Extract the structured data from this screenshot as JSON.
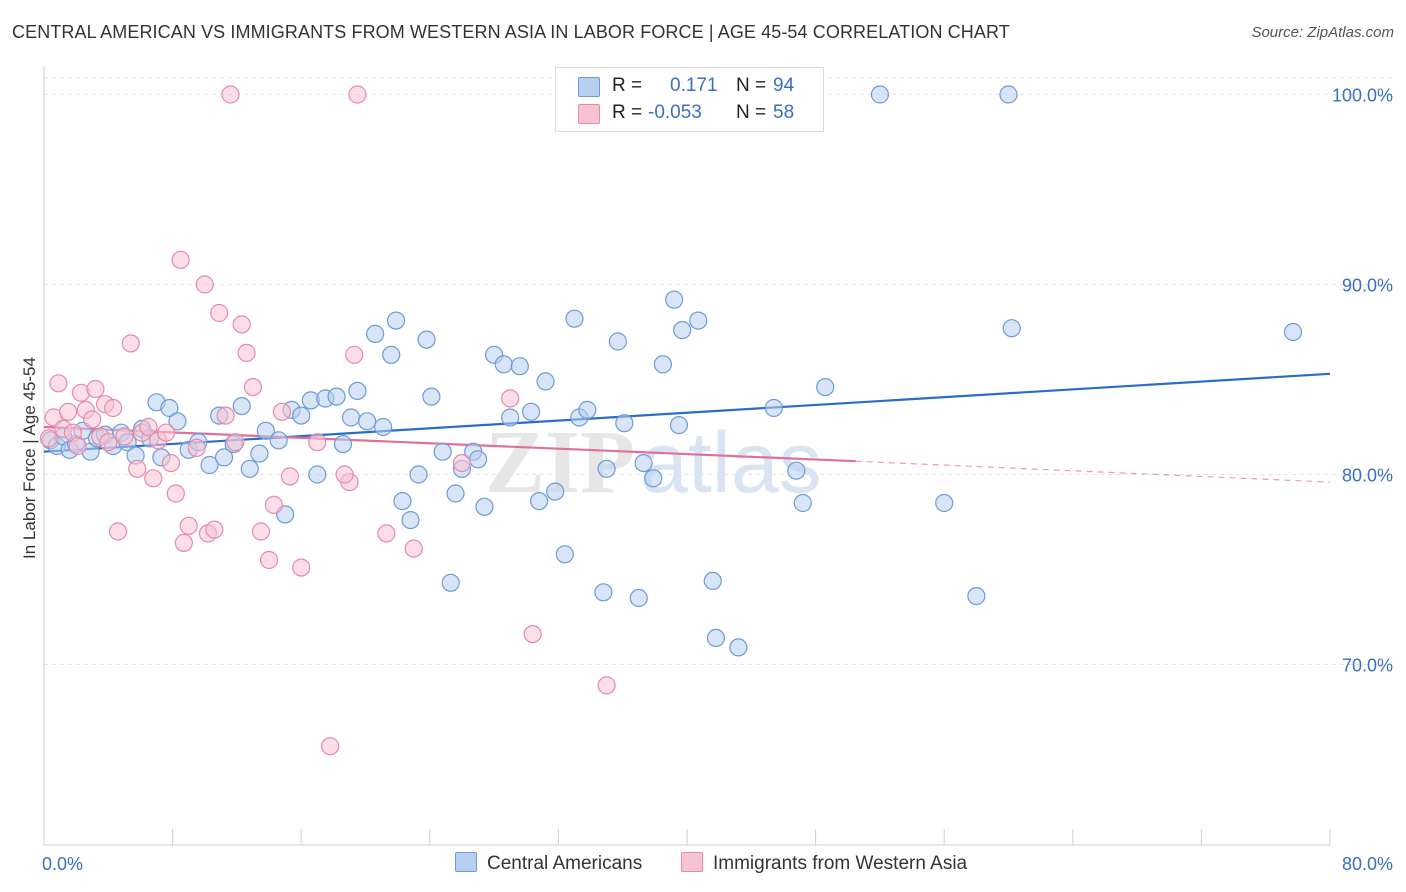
{
  "title": "CENTRAL AMERICAN VS IMMIGRANTS FROM WESTERN ASIA IN LABOR FORCE | AGE 45-54 CORRELATION CHART",
  "source": "Source: ZipAtlas.com",
  "colors": {
    "blue": "#2a6cc9",
    "blue_fill": "#b8d0f0",
    "pink": "#e0709a",
    "pink_fill": "#f7c3d3",
    "value_text": "#3a6fc4"
  },
  "legend_top": {
    "rows": [
      {
        "r_label": "R =",
        "r_value": "0.171",
        "n_label": "N =",
        "n_value": "94"
      },
      {
        "r_label": "R =",
        "r_value": "-0.053",
        "n_label": "N =",
        "n_value": "58"
      }
    ]
  },
  "bottom_legend": [
    "Central Americans",
    "Immigrants from Western Asia"
  ],
  "chart_data": {
    "type": "scatter",
    "title": "CENTRAL AMERICAN VS IMMIGRANTS FROM WESTERN ASIA IN LABOR FORCE | AGE 45-54 CORRELATION CHART",
    "xlabel": "",
    "ylabel": "In Labor Force | Age 45-54",
    "xlim": [
      0,
      80
    ],
    "ylim": [
      60.5,
      101.5
    ],
    "x_tick_labels": [
      "0.0%",
      "80.0%"
    ],
    "y_ticks": [
      70,
      80,
      90,
      100
    ],
    "y_tick_labels": [
      "70.0%",
      "80.0%",
      "90.0%",
      "100.0%"
    ],
    "grid": true,
    "watermark": "ZIPatlas",
    "series": [
      {
        "name": "Central Americans",
        "color": "#2a6cc9",
        "r": 0.171,
        "n": 94,
        "trend": {
          "x": [
            0,
            80
          ],
          "y": [
            81.2,
            85.3
          ]
        },
        "points": [
          [
            0.4,
            81.8
          ],
          [
            0.8,
            81.5
          ],
          [
            1.2,
            82.0
          ],
          [
            1.6,
            81.3
          ],
          [
            2.0,
            81.6
          ],
          [
            2.4,
            82.3
          ],
          [
            2.9,
            81.2
          ],
          [
            3.3,
            81.9
          ],
          [
            3.8,
            82.1
          ],
          [
            4.3,
            81.5
          ],
          [
            4.8,
            82.2
          ],
          [
            5.2,
            81.7
          ],
          [
            5.7,
            81.0
          ],
          [
            6.1,
            82.4
          ],
          [
            6.6,
            81.9
          ],
          [
            7.0,
            83.8
          ],
          [
            7.3,
            80.9
          ],
          [
            7.8,
            83.5
          ],
          [
            8.3,
            82.8
          ],
          [
            9.0,
            81.3
          ],
          [
            9.6,
            81.7
          ],
          [
            10.3,
            80.5
          ],
          [
            10.9,
            83.1
          ],
          [
            11.2,
            80.9
          ],
          [
            11.8,
            81.6
          ],
          [
            12.3,
            83.6
          ],
          [
            12.8,
            80.3
          ],
          [
            13.4,
            81.1
          ],
          [
            13.8,
            82.3
          ],
          [
            14.6,
            81.8
          ],
          [
            15.0,
            77.9
          ],
          [
            15.4,
            83.4
          ],
          [
            16.0,
            83.1
          ],
          [
            16.6,
            83.9
          ],
          [
            17.0,
            80.0
          ],
          [
            17.5,
            84.0
          ],
          [
            18.2,
            84.1
          ],
          [
            18.6,
            81.6
          ],
          [
            19.1,
            83.0
          ],
          [
            19.5,
            84.4
          ],
          [
            20.1,
            82.8
          ],
          [
            20.6,
            87.4
          ],
          [
            21.1,
            82.5
          ],
          [
            21.6,
            86.3
          ],
          [
            21.9,
            88.1
          ],
          [
            22.3,
            78.6
          ],
          [
            22.8,
            77.6
          ],
          [
            23.3,
            80.0
          ],
          [
            23.8,
            87.1
          ],
          [
            24.1,
            84.1
          ],
          [
            24.8,
            81.2
          ],
          [
            25.3,
            74.3
          ],
          [
            25.6,
            79.0
          ],
          [
            26.0,
            80.3
          ],
          [
            26.7,
            81.2
          ],
          [
            27.0,
            80.8
          ],
          [
            27.4,
            78.3
          ],
          [
            28.0,
            86.3
          ],
          [
            28.6,
            85.8
          ],
          [
            29.0,
            83.0
          ],
          [
            29.6,
            85.7
          ],
          [
            30.3,
            83.3
          ],
          [
            30.8,
            78.6
          ],
          [
            31.2,
            84.9
          ],
          [
            31.8,
            79.1
          ],
          [
            32.4,
            75.8
          ],
          [
            33.0,
            88.2
          ],
          [
            33.3,
            83.0
          ],
          [
            33.8,
            83.4
          ],
          [
            34.8,
            73.8
          ],
          [
            35.0,
            80.3
          ],
          [
            35.7,
            87.0
          ],
          [
            36.1,
            82.7
          ],
          [
            37.0,
            73.5
          ],
          [
            37.3,
            80.6
          ],
          [
            37.9,
            79.8
          ],
          [
            38.5,
            85.8
          ],
          [
            39.2,
            89.2
          ],
          [
            39.5,
            82.6
          ],
          [
            39.7,
            87.6
          ],
          [
            40.7,
            88.1
          ],
          [
            41.6,
            74.4
          ],
          [
            41.8,
            71.4
          ],
          [
            43.2,
            70.9
          ],
          [
            45.4,
            83.5
          ],
          [
            46.8,
            80.2
          ],
          [
            47.2,
            78.5
          ],
          [
            48.6,
            84.6
          ],
          [
            52.0,
            100.0
          ],
          [
            56.0,
            78.5
          ],
          [
            58.0,
            73.6
          ],
          [
            60.0,
            100.0
          ],
          [
            60.2,
            87.7
          ],
          [
            77.7,
            87.5
          ]
        ]
      },
      {
        "name": "Immigrants from Western Asia",
        "color": "#e0709a",
        "r": -0.053,
        "n": 58,
        "trend": {
          "x": [
            0,
            50.5
          ],
          "y": [
            82.5,
            80.7
          ]
        },
        "trend_dashed": {
          "x": [
            50.5,
            80
          ],
          "y": [
            80.7,
            79.6
          ]
        },
        "points": [
          [
            0.3,
            81.9
          ],
          [
            0.6,
            83.0
          ],
          [
            0.9,
            84.8
          ],
          [
            1.2,
            82.4
          ],
          [
            1.5,
            83.3
          ],
          [
            1.8,
            82.2
          ],
          [
            2.1,
            81.5
          ],
          [
            2.3,
            84.3
          ],
          [
            2.6,
            83.4
          ],
          [
            3.0,
            82.9
          ],
          [
            3.2,
            84.5
          ],
          [
            3.5,
            82.0
          ],
          [
            3.8,
            83.7
          ],
          [
            4.0,
            81.7
          ],
          [
            4.3,
            83.5
          ],
          [
            4.6,
            77.0
          ],
          [
            5.0,
            82.0
          ],
          [
            5.4,
            86.9
          ],
          [
            5.8,
            80.3
          ],
          [
            6.1,
            82.2
          ],
          [
            6.5,
            82.5
          ],
          [
            6.8,
            79.8
          ],
          [
            7.1,
            81.8
          ],
          [
            7.6,
            82.2
          ],
          [
            7.9,
            80.6
          ],
          [
            8.2,
            79.0
          ],
          [
            8.5,
            91.3
          ],
          [
            8.7,
            76.4
          ],
          [
            9.0,
            77.3
          ],
          [
            9.5,
            81.4
          ],
          [
            10.0,
            90.0
          ],
          [
            10.2,
            76.9
          ],
          [
            10.6,
            77.1
          ],
          [
            10.9,
            88.5
          ],
          [
            11.3,
            83.1
          ],
          [
            11.6,
            100.0
          ],
          [
            11.9,
            81.7
          ],
          [
            12.3,
            87.9
          ],
          [
            12.6,
            86.4
          ],
          [
            13.0,
            84.6
          ],
          [
            13.5,
            77.0
          ],
          [
            14.0,
            75.5
          ],
          [
            14.3,
            78.4
          ],
          [
            14.8,
            83.3
          ],
          [
            15.3,
            79.9
          ],
          [
            16.0,
            75.1
          ],
          [
            17.0,
            81.7
          ],
          [
            17.8,
            65.7
          ],
          [
            19.0,
            79.6
          ],
          [
            19.3,
            86.3
          ],
          [
            19.5,
            100.0
          ],
          [
            21.3,
            76.9
          ],
          [
            23.0,
            76.1
          ],
          [
            26.0,
            80.6
          ],
          [
            29.0,
            84.0
          ],
          [
            30.4,
            71.6
          ],
          [
            35.0,
            68.9
          ],
          [
            18.7,
            80.0
          ]
        ]
      }
    ]
  }
}
